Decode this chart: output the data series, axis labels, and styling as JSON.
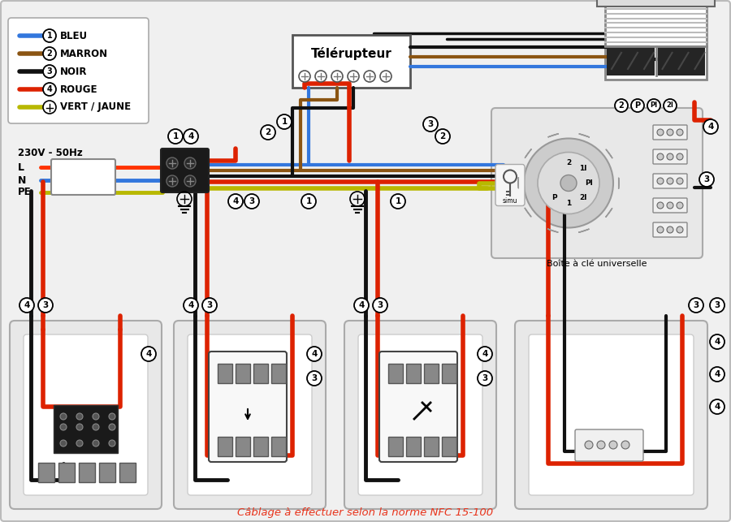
{
  "subtitle": "Câblage à effectuer selon la norme NFC 15-100",
  "subtitle_color": "#e8341c",
  "background_color": "#f0f0f0",
  "wire_colors": {
    "blue": "#3377dd",
    "brown": "#8B5513",
    "black": "#111111",
    "red": "#dd2200",
    "yellow_green": "#b8b800",
    "yellow_green2": "#88aa00",
    "orange": "#ff3300"
  },
  "legend_items": [
    {
      "num": "1",
      "color": "#3377dd",
      "label": "BLEU"
    },
    {
      "num": "2",
      "color": "#8B5513",
      "label": "MARRON"
    },
    {
      "num": "3",
      "color": "#111111",
      "label": "NOIR"
    },
    {
      "num": "4",
      "color": "#dd2200",
      "label": "ROUGE"
    },
    {
      "num": "PE",
      "color": "#b8b800",
      "label": "VERT / JAUNE"
    }
  ]
}
